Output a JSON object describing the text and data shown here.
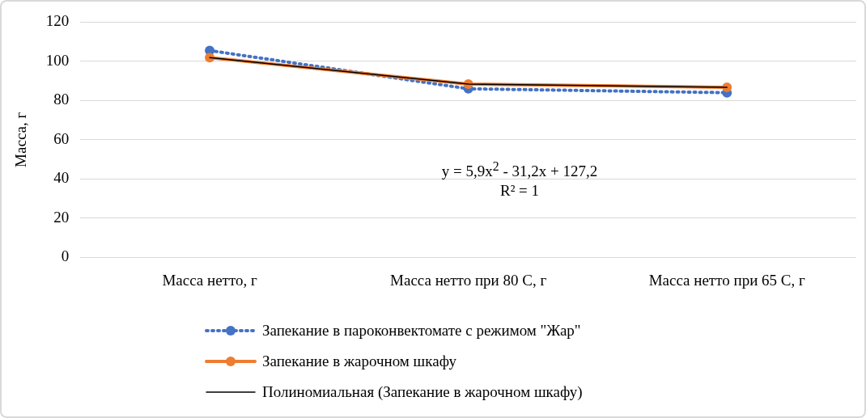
{
  "chart_data": {
    "type": "line",
    "ylabel": "Масса, г",
    "categories": [
      "Масса нетто, г",
      "Масса нетто при 80 С, г",
      "Масса нетто при 65 С, г"
    ],
    "series": [
      {
        "name": "Запекание в пароконвектомате с режимом \"Жар\"",
        "color": "#4472c4",
        "values": [
          105.5,
          86,
          84
        ],
        "line_style": "dotted",
        "marker": "circle"
      },
      {
        "name": "Запекание в жарочном шкафу",
        "color": "#ed7d31",
        "values": [
          101.9,
          88.4,
          86.7
        ],
        "line_style": "solid",
        "marker": "circle"
      },
      {
        "name": "Полиномиальная (Запекание в жарочном шкафу)",
        "color": "#000000",
        "values": [
          101.9,
          88.4,
          86.7
        ],
        "line_style": "solid",
        "marker": "none"
      }
    ],
    "ylim": [
      0,
      120
    ],
    "yticks": [
      0,
      20,
      40,
      60,
      80,
      100,
      120
    ],
    "grid": "y",
    "legend": "bottom",
    "annotations": [
      "y = 5,9x$^{2}$  - 31,2x  + 127,2",
      "R² = 1"
    ]
  }
}
